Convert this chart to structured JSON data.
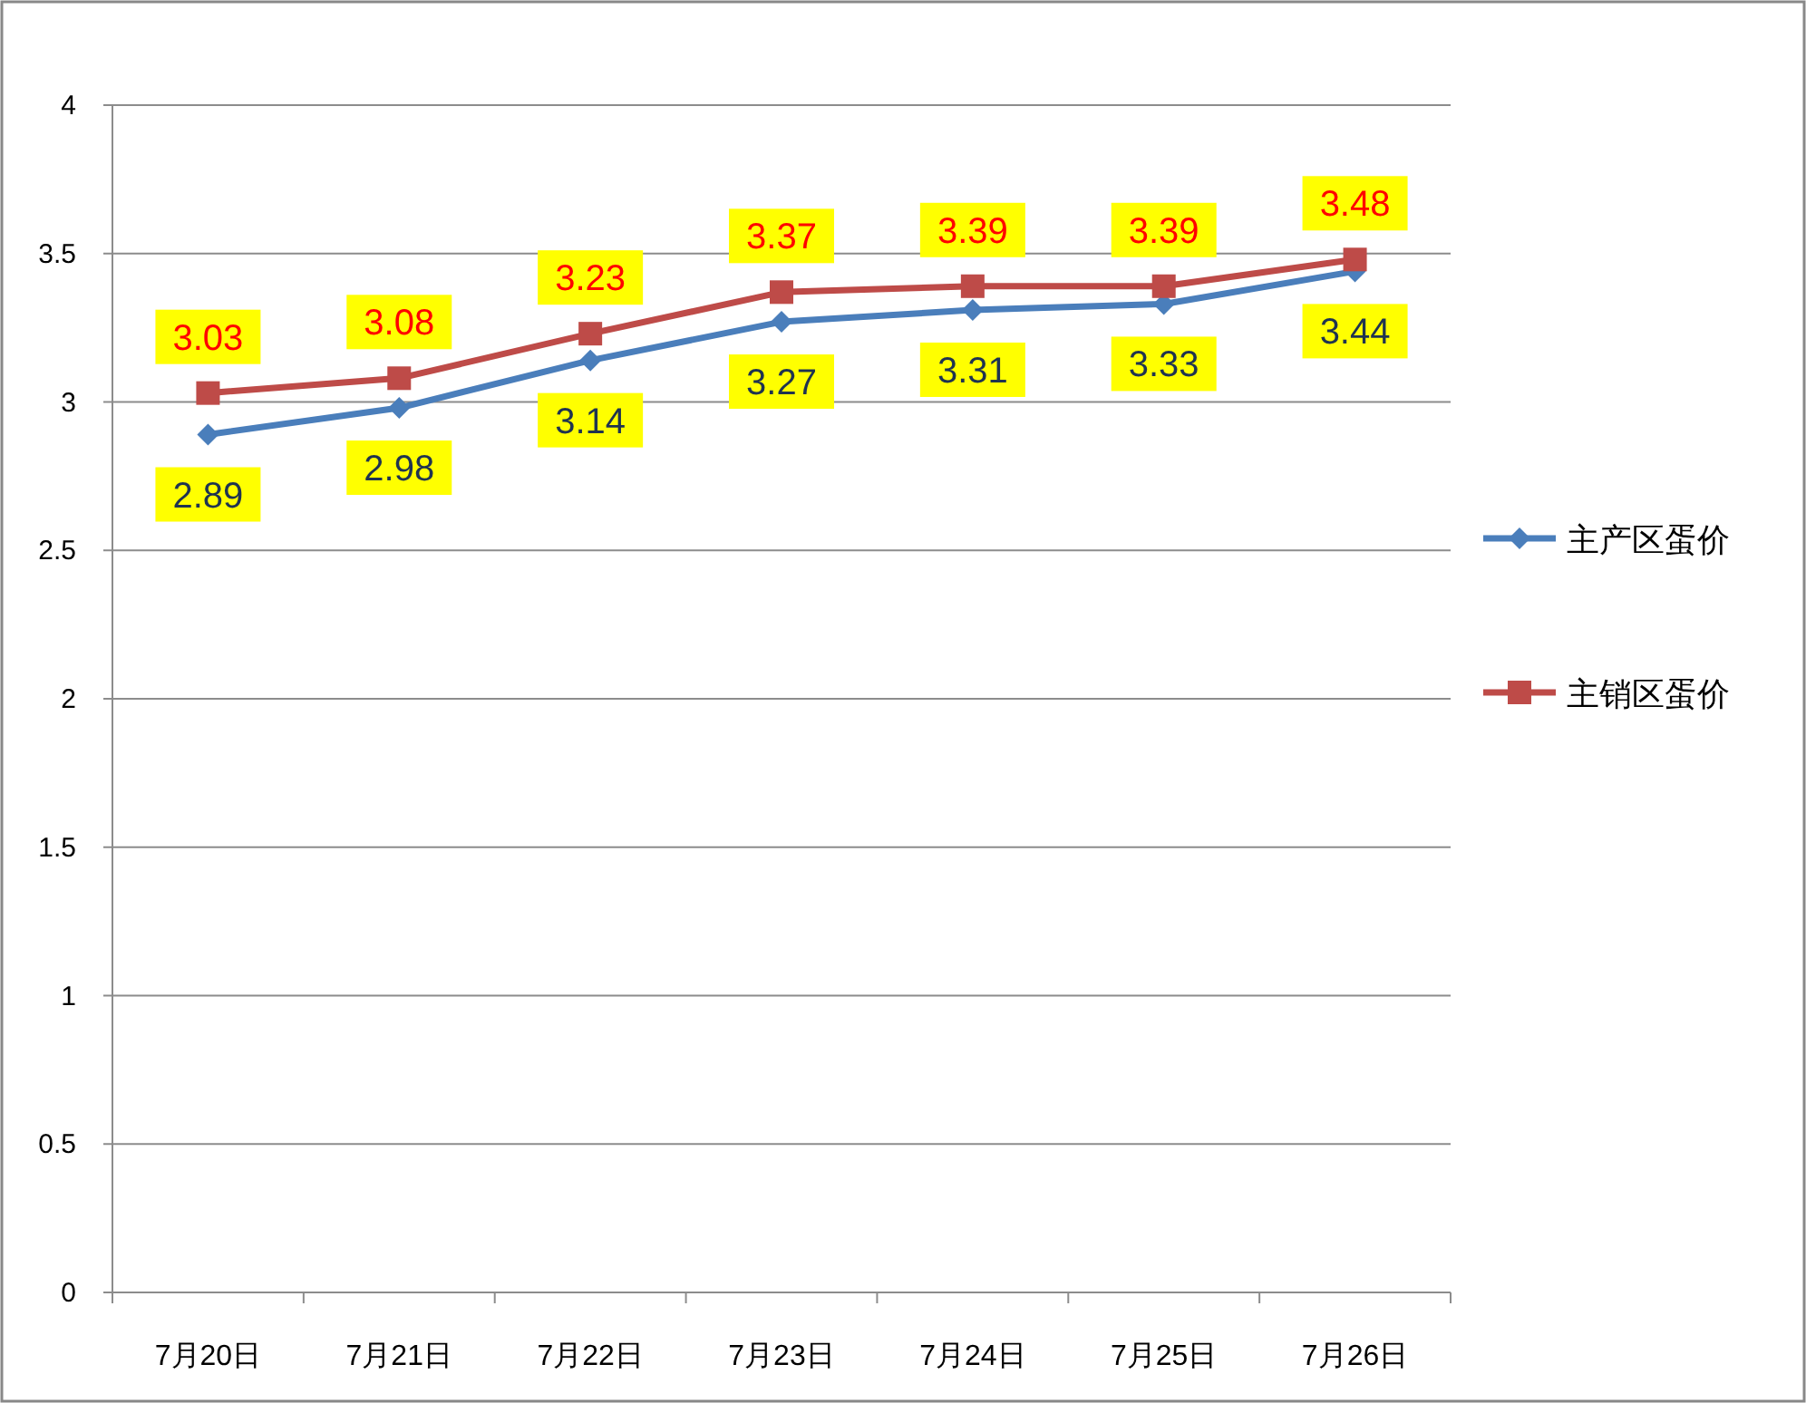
{
  "chart_data": {
    "type": "line",
    "categories": [
      "7月20日",
      "7月21日",
      "7月22日",
      "7月23日",
      "7月24日",
      "7月25日",
      "7月26日"
    ],
    "series": [
      {
        "name": "主产区蛋价",
        "color": "#4a7ebb",
        "marker": "diamond",
        "values": [
          2.89,
          2.98,
          3.14,
          3.27,
          3.31,
          3.33,
          3.44
        ]
      },
      {
        "name": "主销区蛋价",
        "color": "#be4b48",
        "marker": "square",
        "values": [
          3.03,
          3.08,
          3.23,
          3.37,
          3.39,
          3.39,
          3.48
        ]
      }
    ],
    "ylim": [
      0,
      4
    ],
    "yticks": [
      0,
      0.5,
      1,
      1.5,
      2,
      2.5,
      3,
      3.5,
      4
    ],
    "grid": "y",
    "legend": "right",
    "data_labels": true
  }
}
